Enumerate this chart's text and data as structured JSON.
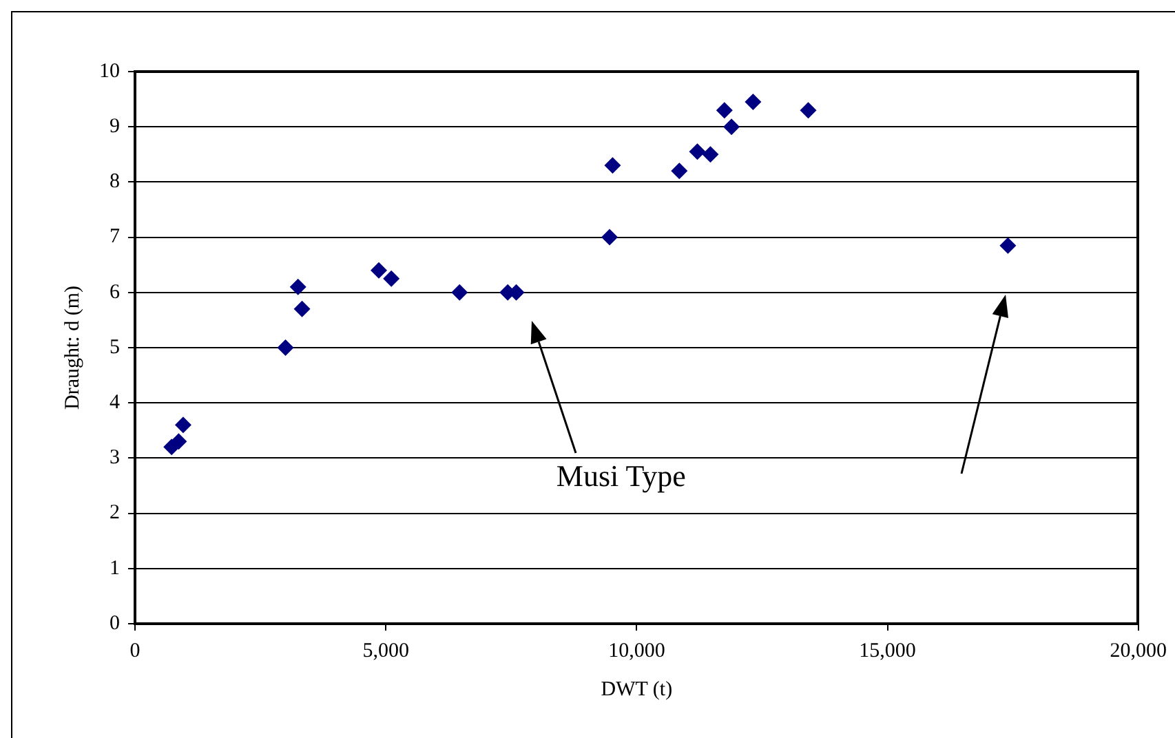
{
  "chart_data": {
    "type": "scatter",
    "xlabel": "DWT (t)",
    "ylabel": "Draught: d (m)",
    "x": [
      730,
      870,
      960,
      3000,
      3250,
      3330,
      4860,
      5030,
      5110,
      6470,
      7430,
      7600,
      9460,
      9520,
      10850,
      11210,
      11470,
      11750,
      11890,
      12320,
      13420,
      17400
    ],
    "series": [
      {
        "color": "#000080",
        "values": [
          3.2,
          3.3,
          3.6,
          5.0,
          6.1,
          5.7,
          6.4,
          null,
          6.25,
          6.0,
          6.0,
          6.0,
          7.0,
          8.3,
          8.2,
          8.55,
          8.5,
          9.3,
          9.0,
          9.45,
          9.3,
          6.85
        ]
      }
    ],
    "marker": "diamond",
    "xlim": [
      0,
      20000
    ],
    "xticks": [
      0,
      {
        "value": 5000,
        "label": "5,000"
      },
      {
        "value": 10000,
        "label": "10,000"
      },
      {
        "value": 15000,
        "label": "15,000"
      },
      {
        "value": 20000,
        "label": "20,000"
      }
    ],
    "ylim": [
      0,
      10
    ],
    "yticks": [
      0,
      1,
      2,
      3,
      4,
      5,
      6,
      7,
      8,
      9,
      10
    ],
    "grid": "y",
    "legend": false,
    "annotations": [
      "Musi Type"
    ]
  }
}
